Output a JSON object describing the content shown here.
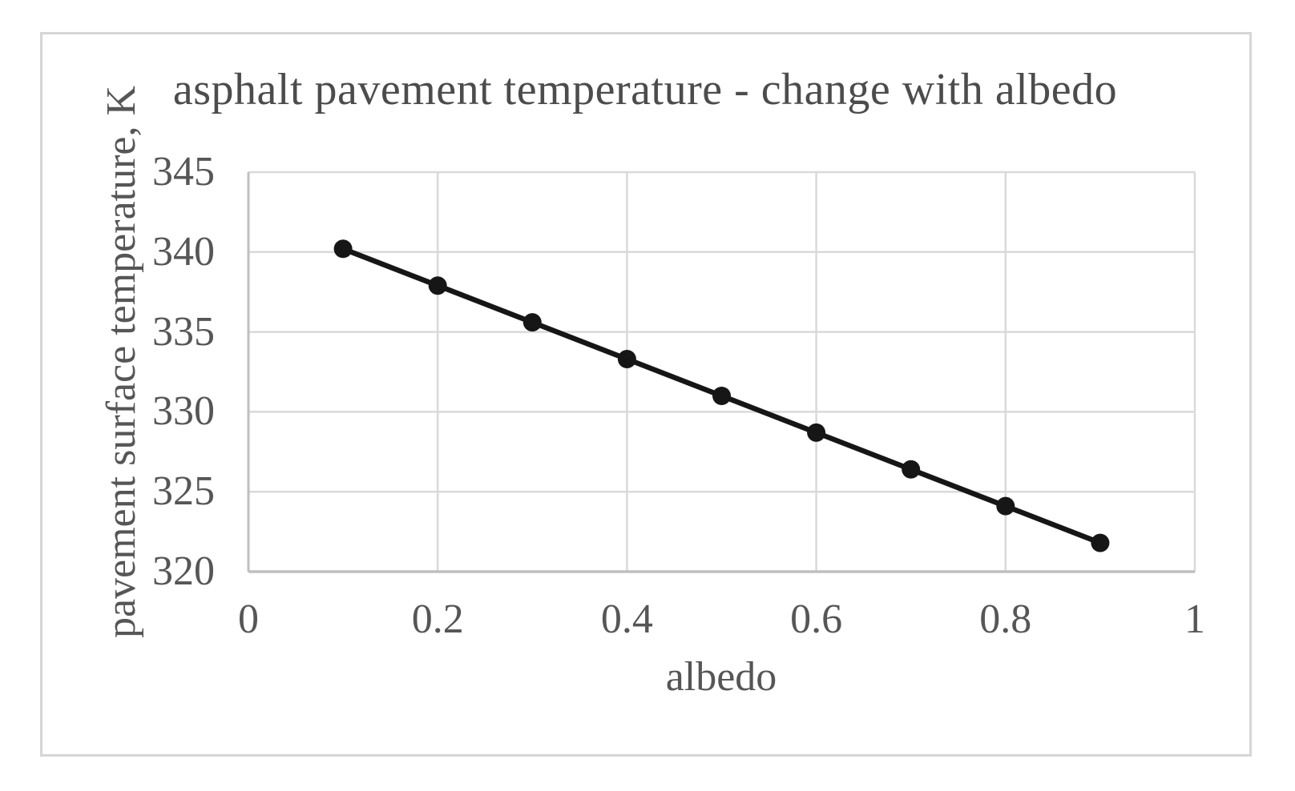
{
  "chart_data": {
    "type": "line",
    "title": "asphalt pavement temperature - change with albedo",
    "xlabel": "albedo",
    "ylabel": "pavement surface temperature, K",
    "x": [
      0.1,
      0.2,
      0.3,
      0.4,
      0.5,
      0.6,
      0.7,
      0.8,
      0.9
    ],
    "values": [
      340.2,
      337.9,
      335.6,
      333.3,
      331.0,
      328.7,
      326.4,
      324.1,
      321.8
    ],
    "xlim": [
      0,
      1
    ],
    "ylim": [
      320,
      345
    ],
    "x_ticks": [
      "0",
      "0.2",
      "0.4",
      "0.6",
      "0.8",
      "1"
    ],
    "y_ticks": [
      "320",
      "325",
      "330",
      "335",
      "340",
      "345"
    ],
    "grid": true,
    "legend": "none",
    "marker": "circle"
  },
  "style": {
    "background": "#ffffff",
    "frame_border": "#d6d6d6",
    "grid_color": "#d9d9d9",
    "axis_color": "#bfbfbf",
    "text_color": "#565656",
    "title_color": "#4c4c4c",
    "series_color": "#161616"
  }
}
